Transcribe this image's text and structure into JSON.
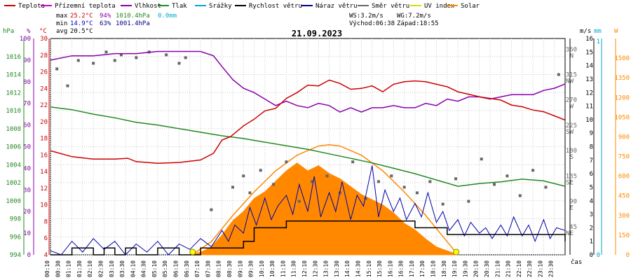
{
  "legend": [
    {
      "label": "Teplota",
      "color": "#cc0000"
    },
    {
      "label": "Přízemní teplota",
      "color": "#cc00cc"
    },
    {
      "label": "Vlhkost",
      "color": "#8800aa"
    },
    {
      "label": "Tlak",
      "color": "#228822"
    },
    {
      "label": "Srážky",
      "color": "#00aacc"
    },
    {
      "label": "Rychlost větru",
      "color": "#000000"
    },
    {
      "label": "Náraz větru",
      "color": "#000088"
    },
    {
      "label": "Směr větru",
      "color": "#666666"
    },
    {
      "label": "UV index",
      "color": "#dddd00"
    },
    {
      "label": "Solar",
      "color": "#ff8800"
    }
  ],
  "stats": {
    "max_label": "max",
    "max_temp": "25.2°C",
    "max_hum": "94%",
    "max_press": "1010.4hPa",
    "rain": "0.0mm",
    "min_label": "min",
    "min_temp": "14.9°C",
    "min_hum": "63%",
    "min_press": "1001.4hPa",
    "avg_label": "avg",
    "avg_temp": "20.5°C",
    "ws": "WS:3.2m/s",
    "wg": "WG:7.2m/s",
    "sunrise": "Východ:06:38",
    "sunset": "Západ:18:55"
  },
  "date": "21.09.2023",
  "units": {
    "hpa": "hPa",
    "pct": "%",
    "degc": "°C",
    "ms": "m/s",
    "mm": "mm",
    "w": "W",
    "cas": "čas"
  },
  "colors": {
    "temp": "#cc0000",
    "humidity": "#8800aa",
    "pressure": "#228822",
    "rain": "#00aacc",
    "wind": "#000000",
    "gust": "#0000aa",
    "dir": "#666666",
    "solar": "#ff8800",
    "uv": "#dddd00"
  },
  "chart_data": {
    "type": "line",
    "title": "21.09.2023",
    "xlabel": "čas",
    "x_ticks": [
      "00:10",
      "00:30",
      "01:10",
      "01:30",
      "02:10",
      "02:30",
      "03:10",
      "03:30",
      "04:10",
      "04:30",
      "05:10",
      "05:30",
      "06:10",
      "06:30",
      "07:10",
      "07:30",
      "08:10",
      "08:30",
      "09:10",
      "09:30",
      "10:10",
      "10:30",
      "11:10",
      "11:30",
      "12:10",
      "12:30",
      "13:10",
      "13:30",
      "14:10",
      "14:30",
      "15:10",
      "15:30",
      "16:10",
      "16:30",
      "17:10",
      "17:30",
      "18:10",
      "18:30",
      "19:10",
      "19:30",
      "20:10",
      "20:30",
      "21:10",
      "21:30",
      "22:10",
      "22:30",
      "23:10",
      "23:30"
    ],
    "axes": {
      "pressure_hpa": {
        "ticks": [
          994,
          996,
          998,
          1000,
          1002,
          1004,
          1006,
          1008,
          1010,
          1012,
          1014,
          1016
        ],
        "ylim": [
          994,
          1018
        ]
      },
      "humidity_pct": {
        "ticks": [
          0,
          10,
          20,
          30,
          40,
          50,
          60,
          70,
          80,
          90,
          100
        ],
        "ylim": [
          0,
          100
        ]
      },
      "temperature_c": {
        "ticks": [
          4,
          6,
          8,
          10,
          12,
          14,
          16,
          18,
          20,
          22,
          24,
          26,
          28,
          30
        ],
        "ylim": [
          4,
          30
        ]
      },
      "wind_ms": {
        "ticks": [
          0,
          1,
          2,
          3,
          4,
          5,
          6,
          7,
          8,
          9,
          10,
          11,
          12,
          13,
          14,
          15,
          16
        ],
        "ylim": [
          0,
          16
        ]
      },
      "direction": {
        "ticks": [
          {
            "v": "45",
            "l": "NE"
          },
          {
            "v": "90",
            "l": "E"
          },
          {
            "v": "135",
            "l": "SE"
          },
          {
            "v": "180",
            "l": "S"
          },
          {
            "v": "225",
            "l": "SW"
          },
          {
            "v": "270",
            "l": "W"
          },
          {
            "v": "315",
            "l": "NW"
          },
          {
            "v": "360",
            "l": "N"
          }
        ]
      },
      "rain_mm": {
        "ticks": [
          0,
          1
        ]
      },
      "solar_w": {
        "ticks": [
          0,
          150,
          300,
          450,
          600,
          750,
          900,
          1050,
          1200,
          1350,
          1500
        ],
        "ylim": [
          0,
          1650
        ]
      }
    },
    "series": [
      {
        "name": "Teplota",
        "unit": "°C",
        "x_hours": [
          0,
          1,
          2,
          3,
          3.6,
          4,
          5,
          6,
          7,
          7.6,
          8,
          8.4,
          9,
          9.5,
          10,
          10.5,
          11,
          11.5,
          12,
          12.5,
          13,
          13.5,
          14,
          14.5,
          15,
          15.5,
          16,
          16.5,
          17,
          17.5,
          18,
          18.5,
          19,
          19.5,
          20,
          20.5,
          21,
          21.5,
          22,
          22.5,
          23,
          23.5,
          24
        ],
        "y": [
          16.5,
          15.8,
          15.5,
          15.5,
          15.6,
          15.2,
          15.0,
          15.1,
          15.4,
          16.2,
          17.8,
          18.2,
          19.5,
          20.3,
          21.3,
          21.6,
          22.8,
          23.5,
          24.4,
          24.3,
          25.0,
          24.6,
          23.9,
          24.0,
          24.3,
          23.6,
          24.5,
          24.8,
          24.9,
          24.8,
          24.5,
          24.2,
          23.6,
          23.3,
          23.0,
          22.8,
          22.6,
          22.0,
          21.8,
          21.4,
          21.2,
          20.7,
          20.2
        ]
      },
      {
        "name": "Vlhkost",
        "unit": "%",
        "x_hours": [
          0,
          1,
          2,
          3,
          4,
          5,
          6,
          7,
          7.6,
          8,
          8.5,
          9,
          9.5,
          10,
          10.5,
          11,
          11.5,
          12,
          12.5,
          13,
          13.5,
          14,
          14.5,
          15,
          15.5,
          16,
          16.5,
          17,
          17.5,
          18,
          18.5,
          19,
          19.5,
          20,
          20.5,
          21,
          21.5,
          22,
          22.5,
          23,
          23.5,
          24
        ],
        "y": [
          90,
          92,
          92,
          93,
          93,
          94,
          94,
          94,
          92,
          87,
          81,
          77,
          75,
          72,
          69,
          71,
          69,
          68,
          70,
          69,
          66,
          68,
          66,
          68,
          68,
          69,
          68,
          68,
          70,
          69,
          72,
          71,
          73,
          73,
          72,
          73,
          74,
          74,
          74,
          76,
          77,
          79
        ]
      },
      {
        "name": "Tlak",
        "unit": "hPa",
        "x_hours": [
          0,
          1,
          2,
          3,
          4,
          5,
          6,
          7,
          8,
          9,
          10,
          11,
          12,
          13,
          14,
          15,
          16,
          17,
          18,
          19,
          20,
          21,
          22,
          23,
          24
        ],
        "y": [
          1010.4,
          1010.1,
          1009.6,
          1009.2,
          1008.7,
          1008.4,
          1008.0,
          1007.6,
          1007.2,
          1006.9,
          1006.5,
          1006.1,
          1005.7,
          1005.2,
          1004.7,
          1004.2,
          1003.6,
          1003.0,
          1002.3,
          1001.6,
          1001.9,
          1002.1,
          1002.4,
          1002.2,
          1001.6
        ]
      },
      {
        "name": "Rychlost větru",
        "unit": "m/s",
        "x_hours": [
          0,
          1,
          1.5,
          2,
          2.5,
          3,
          3.5,
          4,
          5,
          6,
          7,
          8,
          9,
          9.5,
          10,
          10.5,
          11,
          12,
          13,
          14,
          15,
          16,
          17,
          18,
          18.5,
          19,
          20,
          21,
          22,
          23,
          24
        ],
        "y": [
          0.0,
          0.5,
          0.5,
          0.0,
          0.5,
          0.0,
          0.5,
          0.0,
          0.5,
          0.0,
          0.5,
          0.5,
          1.0,
          2.0,
          2.0,
          2.0,
          2.5,
          2.5,
          2.5,
          2.5,
          2.5,
          2.5,
          2.0,
          2.0,
          1.5,
          1.5,
          1.5,
          1.5,
          1.5,
          1.5,
          1.0
        ]
      },
      {
        "name": "Náraz větru",
        "unit": "m/s",
        "x_hours": [
          0,
          0.5,
          1,
          1.5,
          2,
          2.5,
          3,
          3.5,
          4,
          4.5,
          5,
          5.5,
          6,
          6.5,
          7,
          7.5,
          8,
          8.3,
          8.6,
          9,
          9.3,
          9.6,
          10,
          10.3,
          10.6,
          11,
          11.3,
          11.6,
          12,
          12.3,
          12.6,
          13,
          13.3,
          13.6,
          14,
          14.3,
          14.6,
          15,
          15.3,
          15.6,
          16,
          16.3,
          16.6,
          17,
          17.3,
          17.6,
          18,
          18.3,
          18.6,
          19,
          19.3,
          19.6,
          20,
          20.3,
          20.6,
          21,
          21.3,
          21.6,
          22,
          22.3,
          22.6,
          23,
          23.3,
          23.6,
          24
        ],
        "y": [
          0.3,
          0.0,
          1.0,
          0.2,
          1.2,
          0.4,
          1.0,
          0.0,
          0.8,
          0.2,
          1.0,
          0.0,
          0.8,
          0.4,
          1.2,
          0.6,
          1.8,
          1.0,
          2.2,
          1.6,
          3.5,
          2.2,
          4.2,
          2.6,
          3.6,
          4.4,
          3.0,
          5.2,
          3.2,
          5.8,
          2.8,
          4.6,
          3.2,
          5.4,
          2.6,
          4.4,
          3.6,
          6.6,
          2.8,
          4.8,
          3.2,
          4.2,
          2.6,
          3.8,
          2.8,
          4.6,
          2.4,
          3.2,
          1.8,
          2.6,
          1.4,
          2.4,
          1.6,
          2.0,
          1.2,
          2.2,
          1.4,
          2.8,
          1.4,
          2.2,
          1.0,
          2.6,
          1.2,
          2.0,
          1.8
        ]
      },
      {
        "name": "Solar",
        "unit": "W",
        "x_hours": [
          6.5,
          7,
          7.5,
          8,
          8.5,
          9,
          9.5,
          10,
          10.5,
          11,
          11.5,
          12,
          12.5,
          13,
          13.5,
          14,
          14.5,
          15,
          15.5,
          16,
          16.5,
          17,
          17.5,
          18,
          18.5,
          19
        ],
        "y": [
          0,
          20,
          60,
          150,
          260,
          330,
          430,
          480,
          560,
          640,
          700,
          640,
          680,
          620,
          580,
          520,
          460,
          420,
          380,
          320,
          240,
          190,
          120,
          60,
          30,
          0
        ]
      },
      {
        "name": "Solar",
        "unit": "W",
        "x_hours": [
          6.6,
          7.5,
          8.5,
          9.5,
          10.5,
          11.5,
          12.5,
          13.0,
          13.5,
          14.5,
          15.5,
          16.5,
          17.5,
          18.5,
          19.0
        ],
        "y": [
          0,
          100,
          300,
          480,
          640,
          760,
          830,
          840,
          830,
          760,
          640,
          480,
          300,
          100,
          0
        ]
      },
      {
        "name": "Směr větru",
        "unit": "°",
        "x_hours": [
          0.3,
          0.8,
          1.3,
          2,
          2.6,
          3,
          3.3,
          4,
          4.6,
          5.4,
          6.0,
          6.3,
          7.5,
          8.5,
          9.0,
          9.3,
          9.8,
          10.4,
          11.0,
          11.6,
          12.2,
          12.9,
          13.5,
          14.1,
          14.7,
          15.3,
          15.9,
          16.5,
          17.1,
          17.7,
          18.3,
          18.9,
          19.5,
          20.1,
          20.7,
          21.3,
          21.9,
          22.5,
          23.1,
          23.7
        ],
        "y": [
          330,
          300,
          345,
          340,
          360,
          345,
          355,
          350,
          360,
          355,
          340,
          350,
          80,
          120,
          140,
          110,
          150,
          125,
          165,
          95,
          130,
          140,
          110,
          165,
          100,
          130,
          140,
          120,
          110,
          130,
          90,
          135,
          95,
          170,
          125,
          140,
          105,
          150,
          120,
          320
        ]
      }
    ],
    "markers": [
      {
        "name": "Východ",
        "x_hours": 6.63
      },
      {
        "name": "Západ",
        "x_hours": 18.92
      }
    ]
  }
}
